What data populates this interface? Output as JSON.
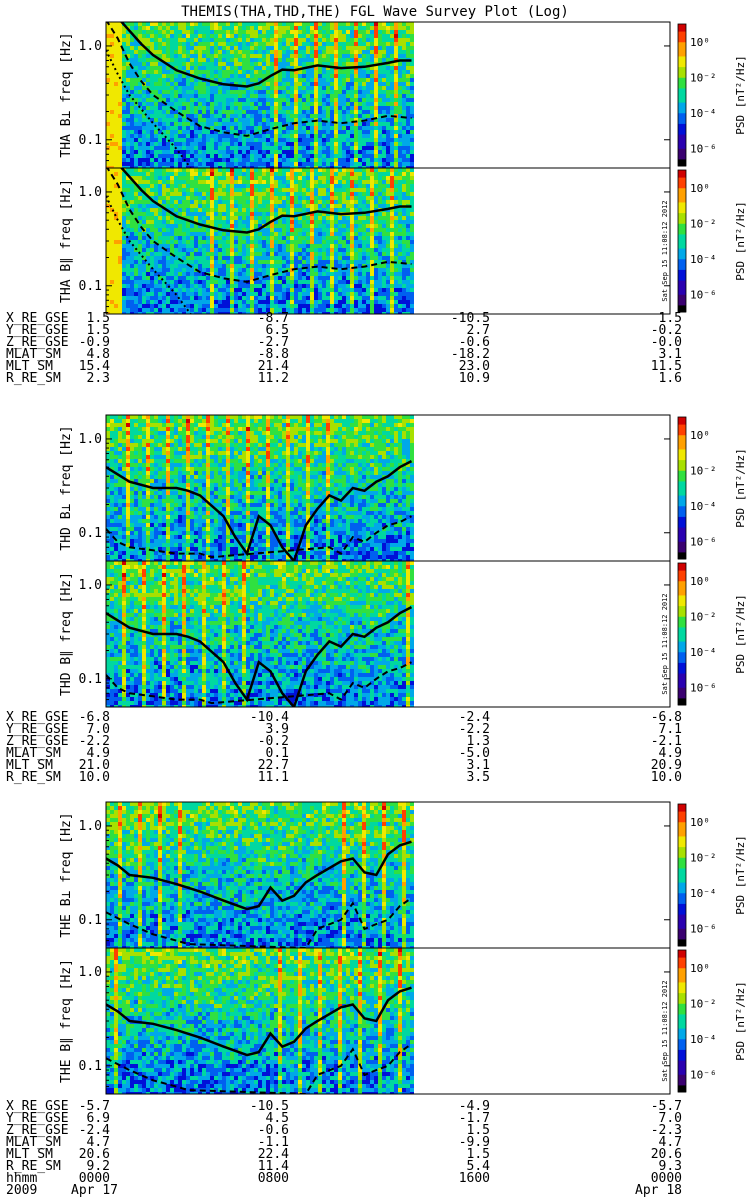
{
  "title": "THEMIS(THA,THD,THE) FGL Wave Survey Plot (Log)",
  "timestamp": "Sat Sep 15 11:08:12 2012",
  "colorbar": {
    "label": "PSD [nT²/Hz]",
    "tick_labels": [
      "10⁰",
      "10⁻²",
      "10⁻⁴",
      "10⁻⁶"
    ],
    "tick_exponents": [
      0,
      -2,
      -4,
      -6
    ],
    "range_exponent": [
      -7,
      1
    ],
    "colors": [
      "#000000",
      "#3a0070",
      "#2a00b0",
      "#0010d8",
      "#0060f0",
      "#00a8e8",
      "#00d8a0",
      "#30e040",
      "#a8e000",
      "#f0e800",
      "#ffa000",
      "#ff4000",
      "#d00000"
    ]
  },
  "panel_data_color_fraction": 0.45,
  "chart_data": [
    {
      "type": "heatmap",
      "title": "THEMIS(THA,THD,THE) FGL Wave Survey Plot (Log)",
      "probe": "THA",
      "component": "B⊥",
      "ylabel": "THA B⊥  freq [Hz]",
      "y_scale": "log",
      "ylim": [
        0.05,
        1.8
      ],
      "y_ticks": [
        0.1,
        1.0
      ],
      "y_tick_labels": [
        "0.1",
        "1.0"
      ],
      "grid": false,
      "data_x_extent_hours": [
        0.0,
        13.0
      ],
      "xlim_hours": [
        0,
        24
      ],
      "lines": [
        {
          "style": "solid",
          "x": [
            0.0,
            0.5,
            1.0,
            1.5,
            2.0,
            3.0,
            4.0,
            5.0,
            6.0,
            6.5,
            7.0,
            7.5,
            8.0,
            9.0,
            10.0,
            11.0,
            12.0,
            12.5,
            13.0
          ],
          "y": [
            3.0,
            2.0,
            1.45,
            1.05,
            0.8,
            0.55,
            0.45,
            0.39,
            0.37,
            0.4,
            0.48,
            0.56,
            0.55,
            0.62,
            0.58,
            0.6,
            0.66,
            0.7,
            0.7
          ]
        },
        {
          "style": "dashed",
          "x": [
            0.0,
            0.5,
            1.0,
            1.5,
            2.0,
            3.0,
            4.0,
            5.0,
            6.0,
            7.0,
            8.0,
            9.0,
            10.0,
            11.0,
            12.0,
            13.0
          ],
          "y": [
            1.9,
            1.2,
            0.65,
            0.42,
            0.3,
            0.2,
            0.14,
            0.12,
            0.11,
            0.13,
            0.15,
            0.16,
            0.15,
            0.16,
            0.18,
            0.17
          ]
        },
        {
          "style": "dotted",
          "x": [
            0.0,
            0.5,
            1.0,
            2.0,
            3.0,
            3.6
          ],
          "y": [
            0.9,
            0.5,
            0.3,
            0.15,
            0.08,
            0.05
          ]
        }
      ]
    },
    {
      "type": "heatmap",
      "probe": "THA",
      "component": "B∥",
      "ylabel": "THA B∥  freq [Hz]",
      "y_scale": "log",
      "ylim": [
        0.05,
        1.8
      ],
      "y_ticks": [
        0.1,
        1.0
      ],
      "y_tick_labels": [
        "0.1",
        "1.0"
      ],
      "grid": false,
      "data_x_extent_hours": [
        0.0,
        13.0
      ],
      "xlim_hours": [
        0,
        24
      ],
      "lines": [
        {
          "style": "solid",
          "x": [
            0.0,
            0.5,
            1.0,
            1.5,
            2.0,
            3.0,
            4.0,
            5.0,
            6.0,
            6.5,
            7.0,
            7.5,
            8.0,
            9.0,
            10.0,
            11.0,
            12.0,
            12.5,
            13.0
          ],
          "y": [
            3.0,
            2.0,
            1.45,
            1.05,
            0.8,
            0.55,
            0.45,
            0.39,
            0.37,
            0.4,
            0.48,
            0.56,
            0.55,
            0.62,
            0.58,
            0.6,
            0.66,
            0.7,
            0.7
          ]
        },
        {
          "style": "dashed",
          "x": [
            0.0,
            0.5,
            1.0,
            1.5,
            2.0,
            3.0,
            4.0,
            5.0,
            6.0,
            7.0,
            8.0,
            9.0,
            10.0,
            11.0,
            12.0,
            13.0
          ],
          "y": [
            1.9,
            1.2,
            0.65,
            0.42,
            0.3,
            0.2,
            0.14,
            0.12,
            0.11,
            0.13,
            0.15,
            0.16,
            0.15,
            0.16,
            0.18,
            0.17
          ]
        },
        {
          "style": "dotted",
          "x": [
            0.0,
            0.5,
            1.0,
            2.0,
            3.0,
            3.6
          ],
          "y": [
            0.9,
            0.5,
            0.3,
            0.15,
            0.08,
            0.05
          ]
        }
      ]
    },
    {
      "type": "heatmap",
      "probe": "THD",
      "component": "B⊥",
      "ylabel": "THD B⊥  freq [Hz]",
      "y_scale": "log",
      "ylim": [
        0.05,
        1.8
      ],
      "y_ticks": [
        0.1,
        1.0
      ],
      "y_tick_labels": [
        "0.1",
        "1.0"
      ],
      "grid": false,
      "data_x_extent_hours": [
        0.0,
        13.0
      ],
      "xlim_hours": [
        0,
        24
      ],
      "lines": [
        {
          "style": "solid",
          "x": [
            0.0,
            1.0,
            2.0,
            3.0,
            3.5,
            4.0,
            5.0,
            5.5,
            6.0,
            6.5,
            7.0,
            7.5,
            8.0,
            8.5,
            9.0,
            9.5,
            10.0,
            10.5,
            11.0,
            11.5,
            12.0,
            12.5,
            13.0
          ],
          "y": [
            0.5,
            0.35,
            0.3,
            0.3,
            0.28,
            0.25,
            0.15,
            0.09,
            0.06,
            0.15,
            0.12,
            0.07,
            0.05,
            0.12,
            0.18,
            0.25,
            0.22,
            0.3,
            0.28,
            0.35,
            0.4,
            0.5,
            0.58
          ]
        },
        {
          "style": "dashed",
          "x": [
            0.0,
            0.5,
            1.0,
            2.0,
            3.0,
            4.0,
            4.5,
            9.5,
            10.0,
            10.5,
            11.0,
            11.5,
            12.0,
            12.5,
            13.0
          ],
          "y": [
            0.11,
            0.08,
            0.07,
            0.065,
            0.06,
            0.06,
            0.055,
            0.07,
            0.06,
            0.09,
            0.08,
            0.1,
            0.12,
            0.13,
            0.15
          ]
        }
      ]
    },
    {
      "type": "heatmap",
      "probe": "THD",
      "component": "B∥",
      "ylabel": "THD B∥  freq [Hz]",
      "y_scale": "log",
      "ylim": [
        0.05,
        1.8
      ],
      "y_ticks": [
        0.1,
        1.0
      ],
      "y_tick_labels": [
        "0.1",
        "1.0"
      ],
      "grid": false,
      "data_x_extent_hours": [
        0.0,
        13.0
      ],
      "xlim_hours": [
        0,
        24
      ],
      "lines": [
        {
          "style": "solid",
          "x": [
            0.0,
            1.0,
            2.0,
            3.0,
            3.5,
            4.0,
            5.0,
            5.5,
            6.0,
            6.5,
            7.0,
            7.5,
            8.0,
            8.5,
            9.0,
            9.5,
            10.0,
            10.5,
            11.0,
            11.5,
            12.0,
            12.5,
            13.0
          ],
          "y": [
            0.5,
            0.35,
            0.3,
            0.3,
            0.28,
            0.25,
            0.15,
            0.09,
            0.06,
            0.15,
            0.12,
            0.07,
            0.05,
            0.12,
            0.18,
            0.25,
            0.22,
            0.3,
            0.28,
            0.35,
            0.4,
            0.5,
            0.58
          ]
        },
        {
          "style": "dashed",
          "x": [
            0.0,
            0.5,
            1.0,
            2.0,
            3.0,
            4.0,
            4.5,
            9.5,
            10.0,
            10.5,
            11.0,
            11.5,
            12.0,
            12.5,
            13.0
          ],
          "y": [
            0.11,
            0.08,
            0.07,
            0.065,
            0.06,
            0.06,
            0.055,
            0.07,
            0.06,
            0.09,
            0.08,
            0.1,
            0.12,
            0.13,
            0.15
          ]
        }
      ]
    },
    {
      "type": "heatmap",
      "probe": "THE",
      "component": "B⊥",
      "ylabel": "THE B⊥  freq [Hz]",
      "y_scale": "log",
      "ylim": [
        0.05,
        1.8
      ],
      "y_ticks": [
        0.1,
        1.0
      ],
      "y_tick_labels": [
        "0.1",
        "1.0"
      ],
      "grid": false,
      "data_x_extent_hours": [
        0.0,
        13.0
      ],
      "xlim_hours": [
        0,
        24
      ],
      "lines": [
        {
          "style": "solid",
          "x": [
            0.0,
            0.5,
            1.0,
            2.0,
            3.0,
            4.0,
            5.0,
            6.0,
            6.5,
            7.0,
            7.5,
            8.0,
            8.5,
            9.0,
            10.0,
            10.5,
            11.0,
            11.5,
            12.0,
            12.5,
            13.0
          ],
          "y": [
            0.45,
            0.38,
            0.3,
            0.28,
            0.24,
            0.2,
            0.16,
            0.13,
            0.14,
            0.22,
            0.16,
            0.18,
            0.25,
            0.3,
            0.42,
            0.45,
            0.32,
            0.3,
            0.5,
            0.62,
            0.68
          ]
        },
        {
          "style": "dashed",
          "x": [
            0.0,
            1.0,
            2.0,
            3.0,
            3.5,
            8.5,
            9.0,
            10.0,
            10.5,
            11.0,
            11.5,
            12.0,
            12.5,
            13.0
          ],
          "y": [
            0.12,
            0.09,
            0.07,
            0.06,
            0.055,
            0.05,
            0.08,
            0.1,
            0.15,
            0.08,
            0.09,
            0.1,
            0.14,
            0.17
          ]
        }
      ]
    },
    {
      "type": "heatmap",
      "probe": "THE",
      "component": "B∥",
      "ylabel": "THE B∥  freq [Hz]",
      "y_scale": "log",
      "ylim": [
        0.05,
        1.8
      ],
      "y_ticks": [
        0.1,
        1.0
      ],
      "y_tick_labels": [
        "0.1",
        "1.0"
      ],
      "grid": false,
      "data_x_extent_hours": [
        0.0,
        13.0
      ],
      "xlim_hours": [
        0,
        24
      ],
      "lines": [
        {
          "style": "solid",
          "x": [
            0.0,
            0.5,
            1.0,
            2.0,
            3.0,
            4.0,
            5.0,
            6.0,
            6.5,
            7.0,
            7.5,
            8.0,
            8.5,
            9.0,
            10.0,
            10.5,
            11.0,
            11.5,
            12.0,
            12.5,
            13.0
          ],
          "y": [
            0.45,
            0.38,
            0.3,
            0.28,
            0.24,
            0.2,
            0.16,
            0.13,
            0.14,
            0.22,
            0.16,
            0.18,
            0.25,
            0.3,
            0.42,
            0.45,
            0.32,
            0.3,
            0.5,
            0.62,
            0.68
          ]
        },
        {
          "style": "dashed",
          "x": [
            0.0,
            1.0,
            2.0,
            3.0,
            3.5,
            8.5,
            9.0,
            10.0,
            10.5,
            11.0,
            11.5,
            12.0,
            12.5,
            13.0
          ],
          "y": [
            0.12,
            0.09,
            0.07,
            0.06,
            0.055,
            0.05,
            0.08,
            0.1,
            0.15,
            0.08,
            0.09,
            0.1,
            0.14,
            0.17
          ]
        }
      ]
    }
  ],
  "ephemeris_blocks": [
    {
      "probe": "THA",
      "columns": [
        {
          "time": "0000",
          "date": "Apr 17"
        },
        {
          "time": "0800",
          "date": ""
        },
        {
          "time": "1600",
          "date": ""
        },
        {
          "time": "0000",
          "date": "Apr 18"
        }
      ],
      "rows": [
        {
          "label": "X_RE_GSE",
          "values": [
            "1.5",
            "-8.7",
            "-10.5",
            "1.5"
          ]
        },
        {
          "label": "Y_RE_GSE",
          "values": [
            "1.5",
            "6.5",
            "2.7",
            "-0.2"
          ]
        },
        {
          "label": "Z_RE_GSE",
          "values": [
            "-0.9",
            "-2.7",
            "-0.6",
            "-0.0"
          ]
        },
        {
          "label": "MLAT_SM",
          "values": [
            "4.8",
            "-8.8",
            "-18.2",
            "3.1"
          ]
        },
        {
          "label": "MLT_SM",
          "values": [
            "15.4",
            "21.4",
            "23.0",
            "11.5"
          ]
        },
        {
          "label": "R_RE_SM",
          "values": [
            "2.3",
            "11.2",
            "10.9",
            "1.6"
          ]
        }
      ]
    },
    {
      "probe": "THD",
      "rows": [
        {
          "label": "X_RE_GSE",
          "values": [
            "-6.8",
            "-10.4",
            "-2.4",
            "-6.8"
          ]
        },
        {
          "label": "Y_RE_GSE",
          "values": [
            "7.0",
            "3.9",
            "-2.2",
            "7.1"
          ]
        },
        {
          "label": "Z_RE_GSE",
          "values": [
            "-2.2",
            "-0.2",
            "1.3",
            "-2.1"
          ]
        },
        {
          "label": "MLAT_SM",
          "values": [
            "4.9",
            "0.1",
            "-5.0",
            "4.9"
          ]
        },
        {
          "label": "MLT_SM",
          "values": [
            "21.0",
            "22.7",
            "3.1",
            "20.9"
          ]
        },
        {
          "label": "R_RE_SM",
          "values": [
            "10.0",
            "11.1",
            "3.5",
            "10.0"
          ]
        }
      ]
    },
    {
      "probe": "THE",
      "rows": [
        {
          "label": "X_RE_GSE",
          "values": [
            "-5.7",
            "-10.5",
            "-4.9",
            "-5.7"
          ]
        },
        {
          "label": "Y_RE_GSE",
          "values": [
            "6.9",
            "4.5",
            "-1.7",
            "7.0"
          ]
        },
        {
          "label": "Z_RE_GSE",
          "values": [
            "-2.4",
            "-0.6",
            "1.5",
            "-2.3"
          ]
        },
        {
          "label": "MLAT_SM",
          "values": [
            "4.7",
            "-1.1",
            "-9.9",
            "4.7"
          ]
        },
        {
          "label": "MLT_SM",
          "values": [
            "20.6",
            "22.4",
            "1.5",
            "20.6"
          ]
        },
        {
          "label": "R_RE_SM",
          "values": [
            "9.2",
            "11.4",
            "5.4",
            "9.3"
          ]
        }
      ]
    }
  ],
  "time_axis": {
    "row_labels": [
      "hhmm",
      "2009"
    ],
    "times": [
      "0000",
      "0800",
      "1600",
      "0000"
    ],
    "dates": [
      "Apr 17",
      "",
      "",
      "Apr 18"
    ]
  }
}
